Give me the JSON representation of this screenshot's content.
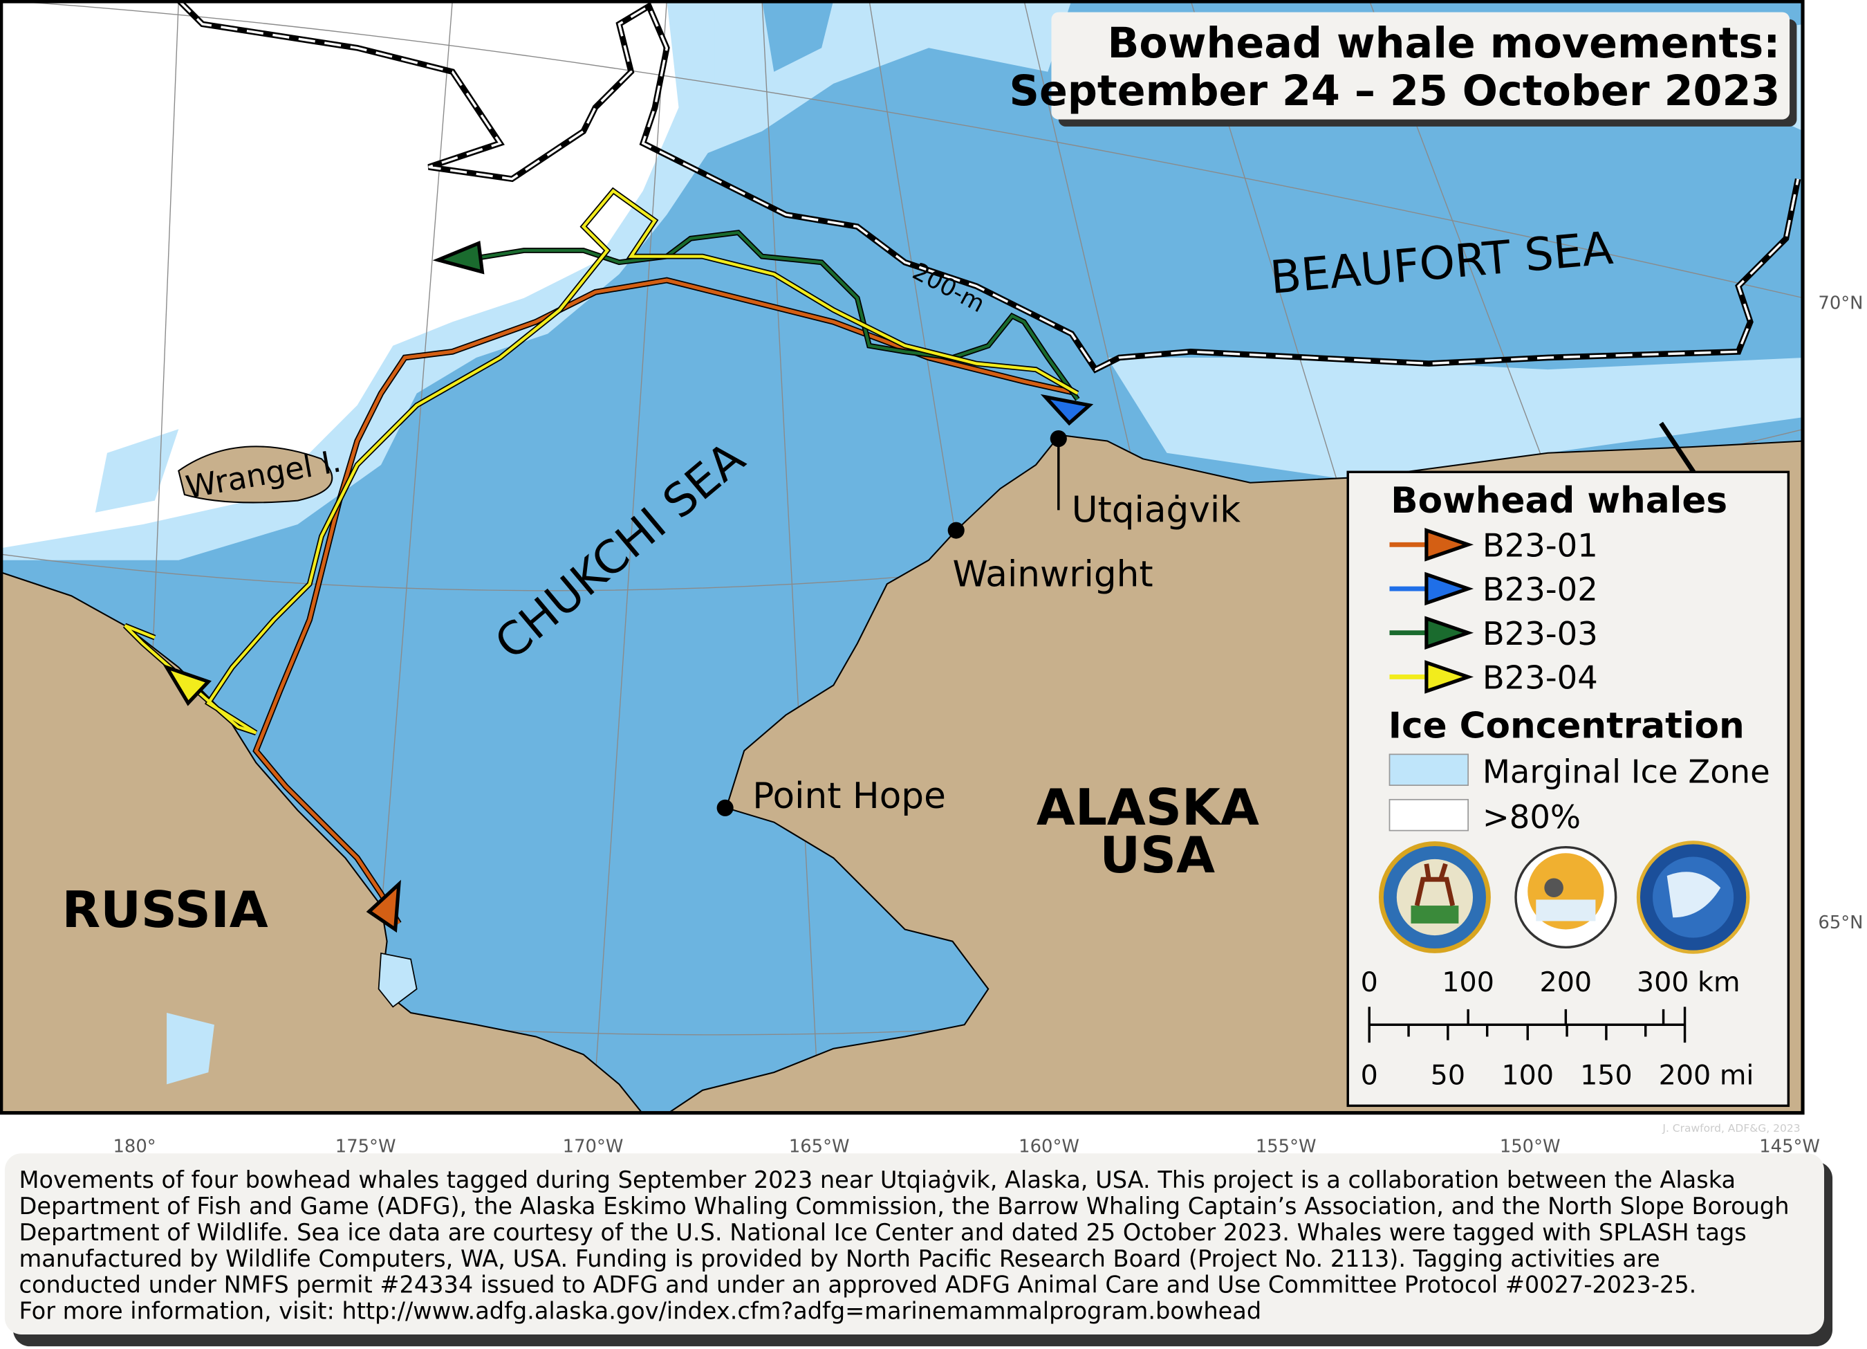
{
  "title": {
    "line1": "Bowhead whale movements:",
    "line2": "September 24 – 25 October 2023"
  },
  "labels": {
    "beaufort": "BEAUFORT SEA",
    "chukchi": "CHUKCHI SEA",
    "wrangel": "Wrangel I.",
    "isobath": "200-m",
    "russia": "RUSSIA",
    "alaska": "ALASKA",
    "usa": "USA",
    "utqiagvik": "Utqiaġvik",
    "wainwright": "Wainwright",
    "point_hope": "Point Hope"
  },
  "longitudes": [
    "180°",
    "175°W",
    "170°W",
    "165°W",
    "160°W",
    "155°W",
    "150°W",
    "145°W"
  ],
  "latitudes": [
    "70°N",
    "65°N"
  ],
  "legend": {
    "whales_title": "Bowhead whales",
    "whales": [
      {
        "id": "B23-01",
        "color": "#d45f14"
      },
      {
        "id": "B23-02",
        "color": "#1f6fe8"
      },
      {
        "id": "B23-03",
        "color": "#1a6b2e"
      },
      {
        "id": "B23-04",
        "color": "#f2ec1c"
      }
    ],
    "ice_title": "Ice Concentration",
    "ice": [
      {
        "label": "Marginal Ice Zone",
        "color": "#bfe5fa"
      },
      {
        "label": ">80%",
        "color": "#ffffff"
      }
    ],
    "logos": [
      "Alaska Department of Fish and Game",
      "North Slope Borough Department of Wildlife Management",
      "North Pacific Research Board"
    ],
    "scale_km": [
      "0",
      "100",
      "200",
      "300 km"
    ],
    "scale_mi": [
      "0",
      "50",
      "100",
      "150",
      "200 mi"
    ]
  },
  "credit": "J. Crawford, ADF&G, 2023",
  "caption": [
    "Movements of four bowhead whales tagged during September 2023 near Utqiaġvik, Alaska, USA. This project is a collaboration between the Alaska",
    "Department of Fish and Game (ADFG), the Alaska Eskimo Whaling Commission, the Barrow Whaling Captain’s Association, and the North Slope Borough",
    "Department of Wildlife. Sea ice data are courtesy of the U.S. National Ice Center and dated 25 October 2023. Whales were tagged with SPLASH tags",
    "manufactured by Wildlife Computers, WA, USA. Funding is provided by North Pacific Research Board (Project No. 2113). Tagging activities are",
    "conducted under NMFS permit #24334 issued to ADFG and under an approved ADFG Animal Care and Use Committee Protocol #0027-2023-25.",
    "For more information, visit: http://www.adfg.alaska.gov/index.cfm?adfg=marinemammalprogram.bowhead"
  ],
  "colors": {
    "ocean": "#6cb4e0",
    "land": "#c8b08c",
    "marginal_ice": "#bfe5fa",
    "pack_ice": "#ffffff"
  }
}
